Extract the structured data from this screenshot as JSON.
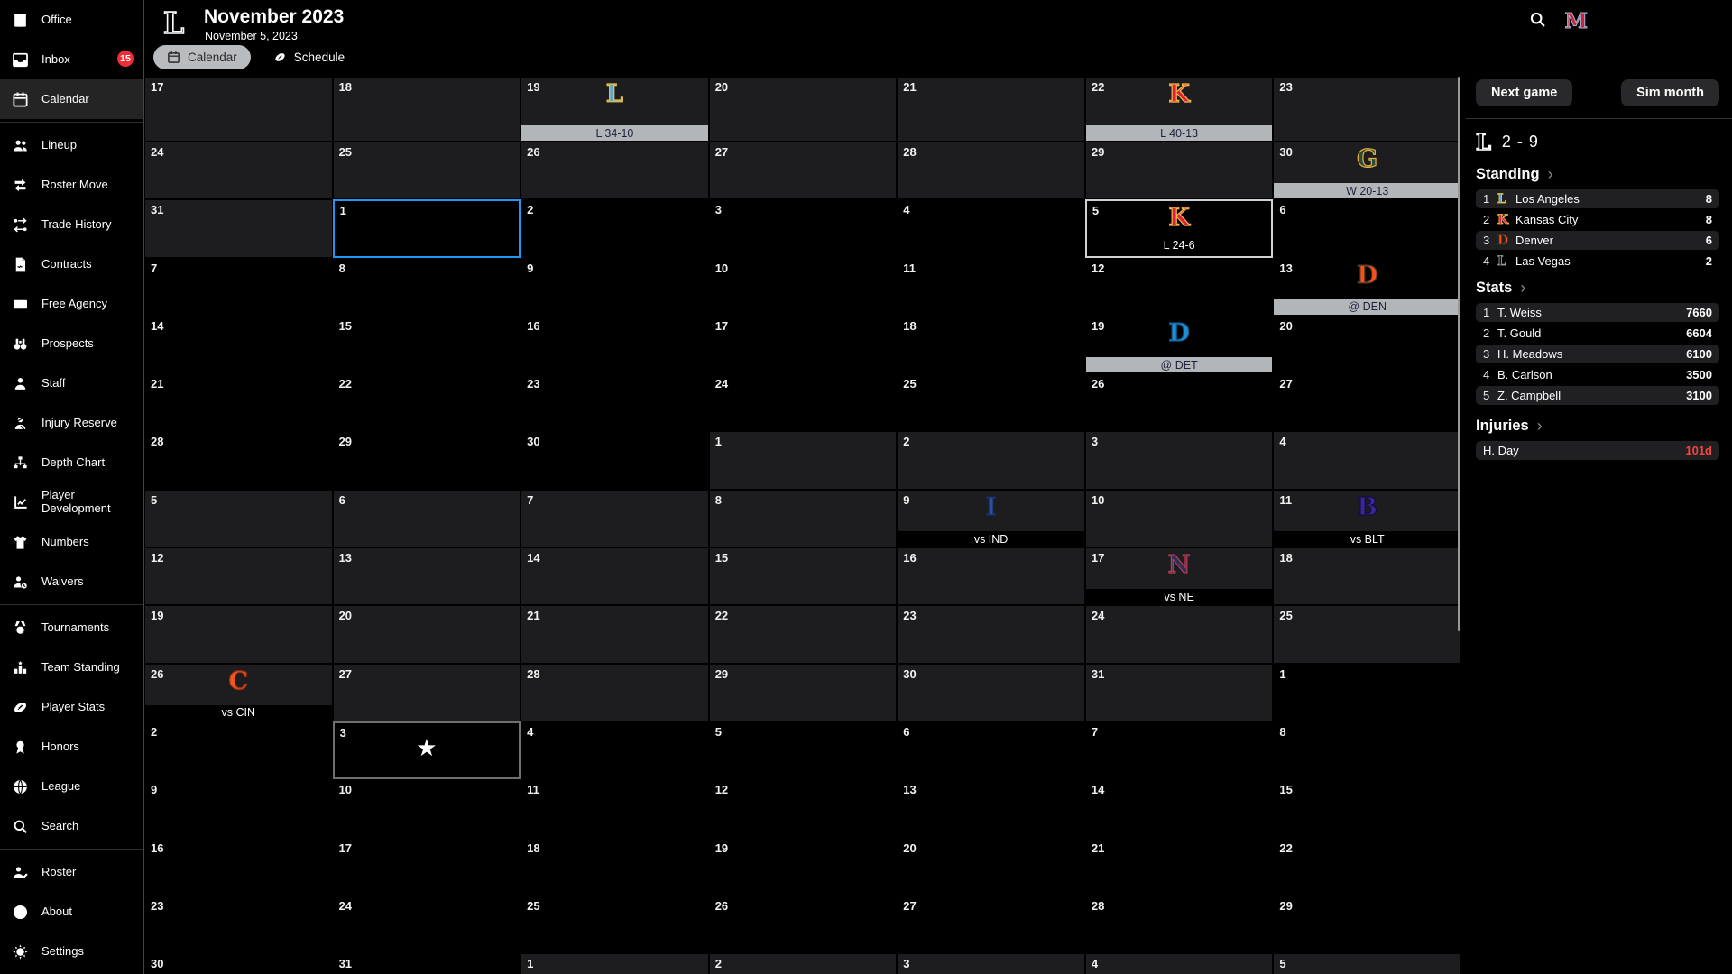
{
  "header": {
    "title": "November 2023",
    "subtitle": "November 5, 2023",
    "team_logo_letter": "L",
    "league_logo_letter": "M",
    "tabs": [
      {
        "label": "Calendar",
        "icon": "calendar",
        "active": true
      },
      {
        "label": "Schedule",
        "icon": "football",
        "active": false
      }
    ]
  },
  "sidebar": {
    "items": [
      {
        "label": "Office",
        "icon": "office"
      },
      {
        "label": "Inbox",
        "icon": "inbox",
        "badge": "15"
      },
      {
        "label": "Calendar",
        "icon": "calendar",
        "active": true,
        "divider_after": true
      },
      {
        "label": "Lineup",
        "icon": "lineup"
      },
      {
        "label": "Roster Move",
        "icon": "roster-move"
      },
      {
        "label": "Trade History",
        "icon": "trade-history"
      },
      {
        "label": "Contracts",
        "icon": "contracts"
      },
      {
        "label": "Free Agency",
        "icon": "free-agency"
      },
      {
        "label": "Prospects",
        "icon": "prospects"
      },
      {
        "label": "Staff",
        "icon": "staff"
      },
      {
        "label": "Injury Reserve",
        "icon": "injury-reserve"
      },
      {
        "label": "Depth Chart",
        "icon": "depth-chart"
      },
      {
        "label": "Player Development",
        "icon": "player-development"
      },
      {
        "label": "Numbers",
        "icon": "numbers"
      },
      {
        "label": "Waivers",
        "icon": "waivers",
        "divider_after": true
      },
      {
        "label": "Tournaments",
        "icon": "tournaments"
      },
      {
        "label": "Team Standing",
        "icon": "team-standing"
      },
      {
        "label": "Player Stats",
        "icon": "player-stats"
      },
      {
        "label": "Honors",
        "icon": "honors"
      },
      {
        "label": "League",
        "icon": "league"
      },
      {
        "label": "Search",
        "icon": "search",
        "divider_after": true
      },
      {
        "label": "Roster",
        "icon": "roster"
      },
      {
        "label": "About",
        "icon": "about"
      },
      {
        "label": "Settings",
        "icon": "settings"
      }
    ]
  },
  "teams": {
    "la": {
      "letter": "L",
      "color": "#56a7dc",
      "stroke": "#f3c33d"
    },
    "kc": {
      "letter": "K",
      "color": "#e2203c",
      "stroke": "#f0b84a"
    },
    "gb": {
      "letter": "G",
      "color": "#2c4a3c",
      "stroke": "#e6b23e"
    },
    "den": {
      "letter": "D",
      "color": "#f4511e",
      "stroke": "#40311e"
    },
    "det": {
      "letter": "D",
      "color": "#1e8fd5",
      "stroke": "#0f5d8f"
    },
    "ind": {
      "letter": "I",
      "color": "#2f4f9e",
      "stroke": "#16294f"
    },
    "blt": {
      "letter": "B",
      "color": "#39289a",
      "stroke": "#150b40"
    },
    "ne": {
      "letter": "N",
      "color": "#24335f",
      "stroke": "#c23a50"
    },
    "cin": {
      "letter": "C",
      "color": "#f4571f",
      "stroke": "#a03410"
    },
    "lv": {
      "letter": "L",
      "color": "#151515",
      "stroke": "#9aa0a6"
    },
    "own": {
      "letter": "L",
      "color": "#000000",
      "stroke": "#ffffff"
    }
  },
  "calendar": {
    "rows": [
      {
        "cells": [
          {
            "d": 17,
            "s": 1
          },
          {
            "d": 18,
            "s": 1
          },
          {
            "d": 19,
            "s": 1,
            "g": {
              "t": "la",
              "bar": "gray",
              "txt": "L 34-10"
            }
          },
          {
            "d": 20,
            "s": 1
          },
          {
            "d": 21,
            "s": 1
          },
          {
            "d": 22,
            "s": 1,
            "g": {
              "t": "kc",
              "bar": "gray",
              "txt": "L 40-13"
            }
          },
          {
            "d": 23,
            "s": 1
          }
        ]
      },
      {
        "cells": [
          {
            "d": 24,
            "s": 1
          },
          {
            "d": 25,
            "s": 1
          },
          {
            "d": 26,
            "s": 1
          },
          {
            "d": 27,
            "s": 1
          },
          {
            "d": 28,
            "s": 1
          },
          {
            "d": 29,
            "s": 1
          },
          {
            "d": 30,
            "s": 1,
            "g": {
              "t": "gb",
              "bar": "gray",
              "txt": "W 20-13"
            }
          }
        ]
      },
      {
        "cells": [
          {
            "d": 31,
            "s": 1
          },
          {
            "d": 1,
            "s": 0,
            "sel": "blue"
          },
          {
            "d": 2,
            "s": 0
          },
          {
            "d": 3,
            "s": 0
          },
          {
            "d": 4,
            "s": 0
          },
          {
            "d": 5,
            "s": 0,
            "sel": "white",
            "g": {
              "t": "kc",
              "bar": "plain",
              "txt": "L 24-6"
            }
          },
          {
            "d": 6,
            "s": 0
          }
        ]
      },
      {
        "cells": [
          {
            "d": 7,
            "s": 0
          },
          {
            "d": 8,
            "s": 0
          },
          {
            "d": 9,
            "s": 0
          },
          {
            "d": 10,
            "s": 0
          },
          {
            "d": 11,
            "s": 0
          },
          {
            "d": 12,
            "s": 0
          },
          {
            "d": 13,
            "s": 0,
            "g": {
              "t": "den",
              "bar": "gray",
              "txt": "@ DEN"
            }
          }
        ]
      },
      {
        "cells": [
          {
            "d": 14,
            "s": 0
          },
          {
            "d": 15,
            "s": 0
          },
          {
            "d": 16,
            "s": 0
          },
          {
            "d": 17,
            "s": 0
          },
          {
            "d": 18,
            "s": 0
          },
          {
            "d": 19,
            "s": 0,
            "g": {
              "t": "det",
              "bar": "gray",
              "txt": "@ DET"
            }
          },
          {
            "d": 20,
            "s": 0
          }
        ]
      },
      {
        "cells": [
          {
            "d": 21,
            "s": 0
          },
          {
            "d": 22,
            "s": 0
          },
          {
            "d": 23,
            "s": 0
          },
          {
            "d": 24,
            "s": 0
          },
          {
            "d": 25,
            "s": 0
          },
          {
            "d": 26,
            "s": 0
          },
          {
            "d": 27,
            "s": 0
          }
        ]
      },
      {
        "cells": [
          {
            "d": 28,
            "s": 0
          },
          {
            "d": 29,
            "s": 0
          },
          {
            "d": 30,
            "s": 0
          },
          {
            "d": 1,
            "s": 1
          },
          {
            "d": 2,
            "s": 1
          },
          {
            "d": 3,
            "s": 1
          },
          {
            "d": 4,
            "s": 1
          }
        ]
      },
      {
        "cells": [
          {
            "d": 5,
            "s": 1
          },
          {
            "d": 6,
            "s": 1
          },
          {
            "d": 7,
            "s": 1
          },
          {
            "d": 8,
            "s": 1
          },
          {
            "d": 9,
            "s": 1,
            "g": {
              "t": "ind",
              "bar": "dark",
              "txt": "vs IND"
            }
          },
          {
            "d": 10,
            "s": 1
          },
          {
            "d": 11,
            "s": 1,
            "g": {
              "t": "blt",
              "bar": "dark",
              "txt": "vs BLT"
            }
          }
        ]
      },
      {
        "cells": [
          {
            "d": 12,
            "s": 1
          },
          {
            "d": 13,
            "s": 1
          },
          {
            "d": 14,
            "s": 1
          },
          {
            "d": 15,
            "s": 1
          },
          {
            "d": 16,
            "s": 1
          },
          {
            "d": 17,
            "s": 1,
            "g": {
              "t": "ne",
              "bar": "dark",
              "txt": "vs NE"
            }
          },
          {
            "d": 18,
            "s": 1
          }
        ]
      },
      {
        "cells": [
          {
            "d": 19,
            "s": 1
          },
          {
            "d": 20,
            "s": 1
          },
          {
            "d": 21,
            "s": 1
          },
          {
            "d": 22,
            "s": 1
          },
          {
            "d": 23,
            "s": 1
          },
          {
            "d": 24,
            "s": 1
          },
          {
            "d": 25,
            "s": 1
          }
        ]
      },
      {
        "cells": [
          {
            "d": 26,
            "s": 1,
            "g": {
              "t": "cin",
              "bar": "dark",
              "txt": "vs CIN"
            }
          },
          {
            "d": 27,
            "s": 1
          },
          {
            "d": 28,
            "s": 1
          },
          {
            "d": 29,
            "s": 1
          },
          {
            "d": 30,
            "s": 1
          },
          {
            "d": 31,
            "s": 1
          },
          {
            "d": 1,
            "s": 0
          }
        ]
      },
      {
        "cells": [
          {
            "d": 2,
            "s": 0
          },
          {
            "d": 3,
            "s": 0,
            "sel": "gray",
            "star": true
          },
          {
            "d": 4,
            "s": 0
          },
          {
            "d": 5,
            "s": 0
          },
          {
            "d": 6,
            "s": 0
          },
          {
            "d": 7,
            "s": 0
          },
          {
            "d": 8,
            "s": 0
          }
        ]
      },
      {
        "cells": [
          {
            "d": 9,
            "s": 0
          },
          {
            "d": 10,
            "s": 0
          },
          {
            "d": 11,
            "s": 0
          },
          {
            "d": 12,
            "s": 0
          },
          {
            "d": 13,
            "s": 0
          },
          {
            "d": 14,
            "s": 0
          },
          {
            "d": 15,
            "s": 0
          }
        ]
      },
      {
        "cells": [
          {
            "d": 16,
            "s": 0
          },
          {
            "d": 17,
            "s": 0
          },
          {
            "d": 18,
            "s": 0
          },
          {
            "d": 19,
            "s": 0
          },
          {
            "d": 20,
            "s": 0
          },
          {
            "d": 21,
            "s": 0
          },
          {
            "d": 22,
            "s": 0
          }
        ]
      },
      {
        "cells": [
          {
            "d": 23,
            "s": 0
          },
          {
            "d": 24,
            "s": 0
          },
          {
            "d": 25,
            "s": 0
          },
          {
            "d": 26,
            "s": 0
          },
          {
            "d": 27,
            "s": 0
          },
          {
            "d": 28,
            "s": 0
          },
          {
            "d": 29,
            "s": 0
          }
        ]
      },
      {
        "cells": [
          {
            "d": 30,
            "s": 0
          },
          {
            "d": 31,
            "s": 0
          },
          {
            "d": 1,
            "s": 1
          },
          {
            "d": 2,
            "s": 1
          },
          {
            "d": 3,
            "s": 1
          },
          {
            "d": 4,
            "s": 1
          },
          {
            "d": 5,
            "s": 1
          }
        ]
      }
    ],
    "star_glyph": "★"
  },
  "right_panel": {
    "next_game_label": "Next game",
    "sim_month_label": "Sim month",
    "record": {
      "team": "own",
      "text": "2 - 9"
    },
    "chevron": "›",
    "standing": {
      "title": "Standing",
      "rows": [
        {
          "rank": "1",
          "team": "la",
          "name": "Los Angeles",
          "value": "8",
          "hl": true
        },
        {
          "rank": "2",
          "team": "kc",
          "name": "Kansas City",
          "value": "8",
          "hl": false
        },
        {
          "rank": "3",
          "team": "den",
          "name": "Denver",
          "value": "6",
          "hl": true
        },
        {
          "rank": "4",
          "team": "lv",
          "name": "Las Vegas",
          "value": "2",
          "hl": false
        }
      ]
    },
    "stats": {
      "title": "Stats",
      "rows": [
        {
          "rank": "1",
          "name": "T. Weiss",
          "value": "7660",
          "hl": true
        },
        {
          "rank": "2",
          "name": "T. Gould",
          "value": "6604",
          "hl": false
        },
        {
          "rank": "3",
          "name": "H. Meadows",
          "value": "6100",
          "hl": true
        },
        {
          "rank": "4",
          "name": "B. Carlson",
          "value": "3500",
          "hl": false
        },
        {
          "rank": "5",
          "name": "Z. Campbell",
          "value": "3100",
          "hl": true
        }
      ]
    },
    "injuries": {
      "title": "Injuries",
      "rows": [
        {
          "name": "H. Day",
          "value": "101d",
          "red": true,
          "hl": true
        }
      ]
    }
  }
}
